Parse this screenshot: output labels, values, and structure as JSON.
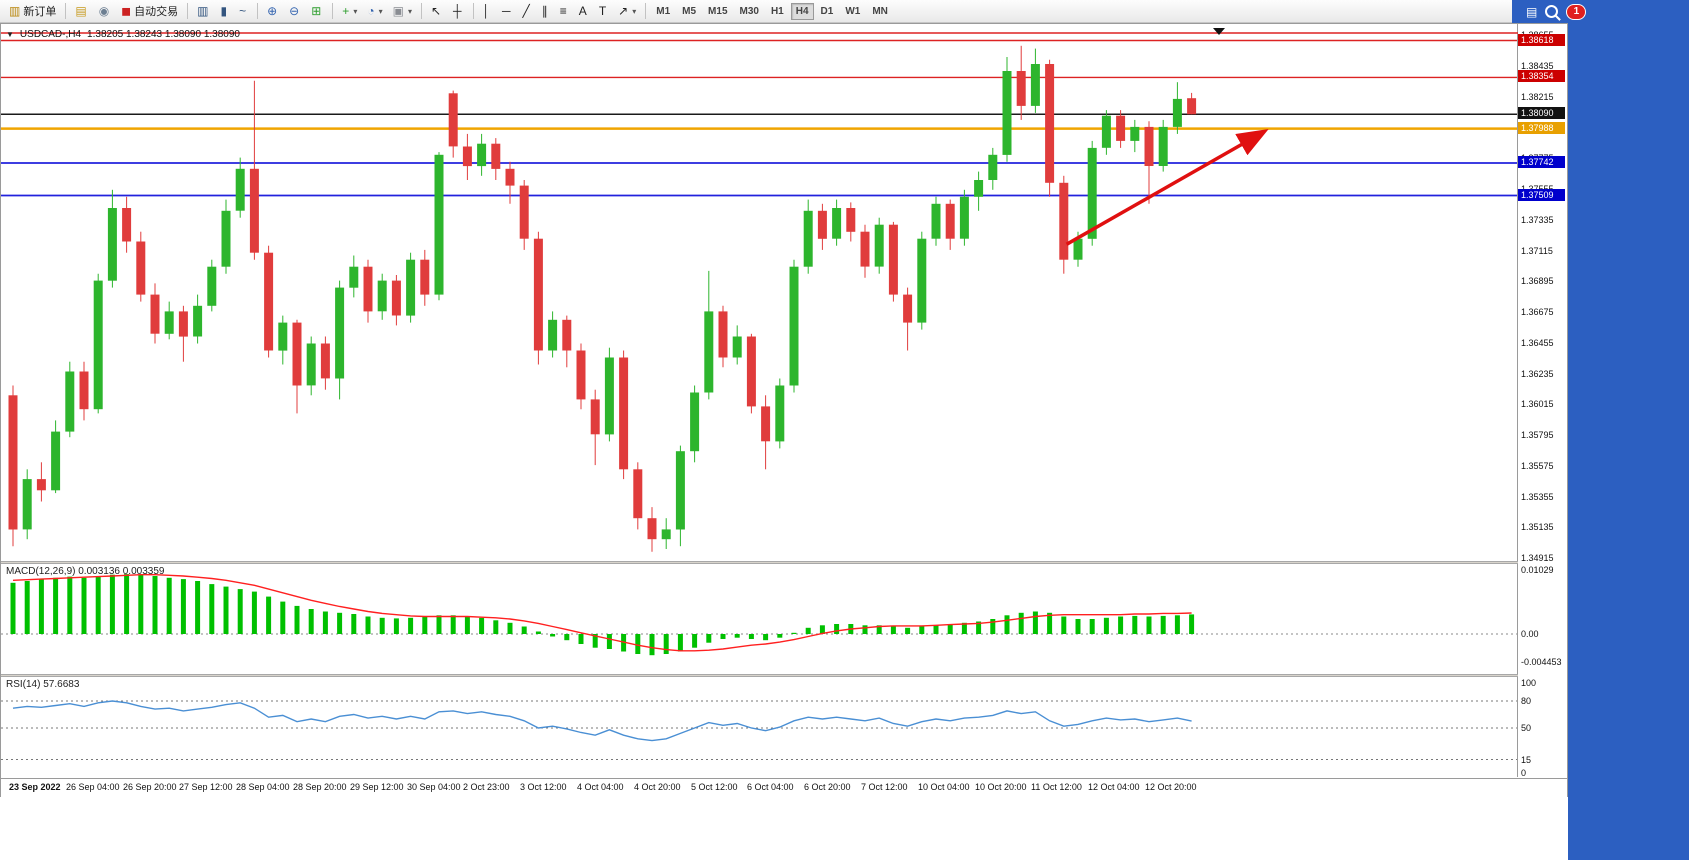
{
  "toolbar": {
    "badge_count": "1",
    "timeframes": [
      "M1",
      "M5",
      "M15",
      "M30",
      "H1",
      "H4",
      "D1",
      "W1",
      "MN"
    ],
    "active_timeframe": "H4",
    "items": [
      {
        "type": "button",
        "name": "new-order-button",
        "icon": "new-order-icon",
        "glyph": "▥",
        "color": "#b8860b",
        "label": "新订单"
      },
      {
        "type": "sep"
      },
      {
        "type": "button",
        "name": "new-chart-button",
        "icon": "new-chart-icon",
        "glyph": "▤",
        "color": "#c79a1e"
      },
      {
        "type": "button",
        "name": "profiles-button",
        "icon": "profiles-icon",
        "glyph": "◉",
        "color": "#6d7f92"
      },
      {
        "type": "button",
        "name": "auto-trading-button",
        "icon": "auto-trading-icon",
        "glyph": "◼",
        "color": "#cc2222",
        "label": "自动交易"
      },
      {
        "type": "sep"
      },
      {
        "type": "button",
        "name": "bar-chart-button",
        "icon": "bar-chart-icon",
        "glyph": "▥",
        "color": "#33557f"
      },
      {
        "type": "button",
        "name": "candlestick-button",
        "icon": "candlestick-icon",
        "glyph": "▮",
        "color": "#33557f"
      },
      {
        "type": "button",
        "name": "line-chart-button",
        "icon": "line-chart-icon",
        "glyph": "~",
        "color": "#33557f"
      },
      {
        "type": "sep"
      },
      {
        "type": "button",
        "name": "zoom-in-button",
        "icon": "zoom-in-icon",
        "glyph": "⊕",
        "color": "#3565b0"
      },
      {
        "type": "button",
        "name": "zoom-out-button",
        "icon": "zoom-out-icon",
        "glyph": "⊖",
        "color": "#3565b0"
      },
      {
        "type": "button",
        "name": "tile-windows-button",
        "icon": "tile-windows-icon",
        "glyph": "⊞",
        "color": "#2e9e2e"
      },
      {
        "type": "sep"
      },
      {
        "type": "button",
        "name": "indicators-button",
        "icon": "indicators-plus-icon",
        "glyph": "+",
        "color": "#2e9e2e",
        "caret": true
      },
      {
        "type": "button",
        "name": "periods-button",
        "icon": "clock-icon",
        "glyph": "◔",
        "color": "#3565b0",
        "caret": true
      },
      {
        "type": "button",
        "name": "templates-button",
        "icon": "template-icon",
        "glyph": "▣",
        "color": "#8a8d93",
        "caret": true
      },
      {
        "type": "sep"
      },
      {
        "type": "button",
        "name": "cursor-button",
        "icon": "cursor-icon",
        "glyph": "↖",
        "color": "#222222"
      },
      {
        "type": "button",
        "name": "crosshair-button",
        "icon": "crosshair-icon",
        "glyph": "┼",
        "color": "#222222"
      },
      {
        "type": "sep"
      },
      {
        "type": "button",
        "name": "vertical-line-button",
        "icon": "vertical-line-icon",
        "glyph": "│",
        "color": "#222222"
      },
      {
        "type": "button",
        "name": "horizontal-line-button",
        "icon": "horizontal-line-icon",
        "glyph": "─",
        "color": "#222222"
      },
      {
        "type": "button",
        "name": "trendline-button",
        "icon": "trendline-icon",
        "glyph": "╱",
        "color": "#222222"
      },
      {
        "type": "button",
        "name": "channel-button",
        "icon": "channel-icon",
        "glyph": "∥",
        "color": "#222222"
      },
      {
        "type": "button",
        "name": "fibonacci-button",
        "icon": "fibonacci-icon",
        "glyph": "≡",
        "color": "#222222"
      },
      {
        "type": "button",
        "name": "text-button",
        "icon": "text-icon",
        "glyph": "A",
        "color": "#222222"
      },
      {
        "type": "button",
        "name": "label-button",
        "icon": "label-icon",
        "glyph": "T",
        "color": "#222222"
      },
      {
        "type": "button",
        "name": "arrows-button",
        "icon": "arrow-icon",
        "glyph": "↗",
        "color": "#222222",
        "caret": true
      },
      {
        "type": "sep"
      }
    ]
  },
  "chart": {
    "title_symbol": "USDCAD-,H4",
    "title_ohlc": "1.38205 1.38243 1.38090 1.38090",
    "macd_label": "MACD(12,26,9) 0.003136 0.003359",
    "rsi_label": "RSI(14) 57.6683",
    "price_axis": [
      "1.38655",
      "1.38435",
      "1.38215",
      "1.37995",
      "1.37775",
      "1.37555",
      "1.37335",
      "1.37115",
      "1.36895",
      "1.36675",
      "1.36455",
      "1.36235",
      "1.36015",
      "1.35795",
      "1.35575",
      "1.35355",
      "1.35135",
      "1.34915"
    ],
    "price_tags": [
      {
        "label": "1.38618",
        "price": 1.38618,
        "bg": "#cc0000"
      },
      {
        "label": "1.38354",
        "price": 1.38354,
        "bg": "#cc0000"
      },
      {
        "label": "1.38090",
        "price": 1.3809,
        "bg": "#111111"
      },
      {
        "label": "1.37988",
        "price": 1.37988,
        "bg": "#e8a000"
      },
      {
        "label": "1.37742",
        "price": 1.37742,
        "bg": "#0000cc"
      },
      {
        "label": "1.37509",
        "price": 1.37509,
        "bg": "#0000cc"
      }
    ],
    "macd_axis": [
      {
        "label": "0.01029",
        "value": 0.01029
      },
      {
        "label": "0.00",
        "value": 0
      },
      {
        "label": "-0.004453",
        "value": -0.004453
      }
    ],
    "rsi_axis": [
      {
        "label": "100",
        "value": 100
      },
      {
        "label": "80",
        "value": 80
      },
      {
        "label": "50",
        "value": 50
      },
      {
        "label": "15",
        "value": 15
      },
      {
        "label": "0",
        "value": 0
      }
    ],
    "time_axis": [
      "23 Sep 2022",
      "26 Sep 04:00",
      "26 Sep 20:00",
      "27 Sep 12:00",
      "28 Sep 04:00",
      "28 Sep 20:00",
      "29 Sep 12:00",
      "30 Sep 04:00",
      "2 Oct 23:00",
      "3 Oct 12:00",
      "4 Oct 04:00",
      "4 Oct 20:00",
      "5 Oct 12:00",
      "6 Oct 04:00",
      "6 Oct 20:00",
      "7 Oct 12:00",
      "10 Oct 04:00",
      "10 Oct 20:00",
      "11 Oct 12:00",
      "12 Oct 04:00",
      "12 Oct 20:00"
    ]
  },
  "chart_data": {
    "type": "candlestick",
    "symbol": "USDCAD",
    "timeframe": "H4",
    "colors": {
      "up": "#2db52d",
      "down": "#e03c3c",
      "macd_hist": "#00c000",
      "macd_signal": "#ff2020",
      "rsi_line": "#4a8fd4"
    },
    "candles": [
      [
        1.3608,
        1.3615,
        1.35,
        1.3512
      ],
      [
        1.3512,
        1.3555,
        1.3505,
        1.3548
      ],
      [
        1.3548,
        1.356,
        1.3532,
        1.354
      ],
      [
        1.354,
        1.359,
        1.3538,
        1.3582
      ],
      [
        1.3582,
        1.3632,
        1.3578,
        1.3625
      ],
      [
        1.3625,
        1.3632,
        1.359,
        1.3598
      ],
      [
        1.3598,
        1.3695,
        1.3595,
        1.369
      ],
      [
        1.369,
        1.3755,
        1.3685,
        1.3742
      ],
      [
        1.3742,
        1.375,
        1.371,
        1.3718
      ],
      [
        1.3718,
        1.3725,
        1.3675,
        1.368
      ],
      [
        1.368,
        1.3688,
        1.3645,
        1.3652
      ],
      [
        1.3652,
        1.3675,
        1.3648,
        1.3668
      ],
      [
        1.3668,
        1.3672,
        1.3632,
        1.365
      ],
      [
        1.365,
        1.368,
        1.3645,
        1.3672
      ],
      [
        1.3672,
        1.3705,
        1.3668,
        1.37
      ],
      [
        1.37,
        1.3748,
        1.3695,
        1.374
      ],
      [
        1.374,
        1.3778,
        1.3735,
        1.377
      ],
      [
        1.377,
        1.3833,
        1.3705,
        1.371
      ],
      [
        1.371,
        1.3715,
        1.3635,
        1.364
      ],
      [
        1.364,
        1.3665,
        1.363,
        1.366
      ],
      [
        1.366,
        1.3662,
        1.3595,
        1.3615
      ],
      [
        1.3615,
        1.365,
        1.3608,
        1.3645
      ],
      [
        1.3645,
        1.365,
        1.3612,
        1.362
      ],
      [
        1.362,
        1.369,
        1.3605,
        1.3685
      ],
      [
        1.3685,
        1.3708,
        1.3678,
        1.37
      ],
      [
        1.37,
        1.3705,
        1.366,
        1.3668
      ],
      [
        1.3668,
        1.3695,
        1.3662,
        1.369
      ],
      [
        1.369,
        1.3694,
        1.3658,
        1.3665
      ],
      [
        1.3665,
        1.371,
        1.366,
        1.3705
      ],
      [
        1.3705,
        1.3712,
        1.3672,
        1.368
      ],
      [
        1.368,
        1.3782,
        1.3676,
        1.378
      ],
      [
        1.3824,
        1.3826,
        1.3778,
        1.3786
      ],
      [
        1.3786,
        1.3795,
        1.3762,
        1.3772
      ],
      [
        1.3772,
        1.3795,
        1.3765,
        1.3788
      ],
      [
        1.3788,
        1.3792,
        1.3762,
        1.377
      ],
      [
        1.377,
        1.3775,
        1.3745,
        1.3758
      ],
      [
        1.3758,
        1.3762,
        1.3712,
        1.372
      ],
      [
        1.372,
        1.3725,
        1.363,
        1.364
      ],
      [
        1.364,
        1.3668,
        1.3635,
        1.3662
      ],
      [
        1.3662,
        1.3665,
        1.3628,
        1.364
      ],
      [
        1.364,
        1.3645,
        1.3598,
        1.3605
      ],
      [
        1.3605,
        1.3612,
        1.3558,
        1.358
      ],
      [
        1.358,
        1.3642,
        1.3575,
        1.3635
      ],
      [
        1.3635,
        1.364,
        1.3548,
        1.3555
      ],
      [
        1.3555,
        1.356,
        1.3512,
        1.352
      ],
      [
        1.352,
        1.3528,
        1.3496,
        1.3505
      ],
      [
        1.3505,
        1.352,
        1.3498,
        1.3512
      ],
      [
        1.3512,
        1.3572,
        1.35,
        1.3568
      ],
      [
        1.3568,
        1.3615,
        1.356,
        1.361
      ],
      [
        1.361,
        1.3697,
        1.3605,
        1.3668
      ],
      [
        1.3668,
        1.3672,
        1.3628,
        1.3635
      ],
      [
        1.3635,
        1.3658,
        1.363,
        1.365
      ],
      [
        1.365,
        1.3652,
        1.3595,
        1.36
      ],
      [
        1.36,
        1.3608,
        1.3555,
        1.3575
      ],
      [
        1.3575,
        1.362,
        1.357,
        1.3615
      ],
      [
        1.3615,
        1.3705,
        1.361,
        1.37
      ],
      [
        1.37,
        1.3748,
        1.3695,
        1.374
      ],
      [
        1.374,
        1.3745,
        1.3712,
        1.372
      ],
      [
        1.372,
        1.3748,
        1.3715,
        1.3742
      ],
      [
        1.3742,
        1.3746,
        1.3718,
        1.3725
      ],
      [
        1.3725,
        1.373,
        1.3692,
        1.37
      ],
      [
        1.37,
        1.3735,
        1.3695,
        1.373
      ],
      [
        1.373,
        1.3732,
        1.3675,
        1.368
      ],
      [
        1.368,
        1.3685,
        1.364,
        1.366
      ],
      [
        1.366,
        1.3725,
        1.3655,
        1.372
      ],
      [
        1.372,
        1.375,
        1.3715,
        1.3745
      ],
      [
        1.3745,
        1.3748,
        1.3712,
        1.372
      ],
      [
        1.372,
        1.3755,
        1.3715,
        1.375
      ],
      [
        1.375,
        1.3768,
        1.374,
        1.3762
      ],
      [
        1.3762,
        1.3785,
        1.3755,
        1.378
      ],
      [
        1.378,
        1.385,
        1.3775,
        1.384
      ],
      [
        1.384,
        1.3858,
        1.3805,
        1.3815
      ],
      [
        1.3815,
        1.3856,
        1.381,
        1.3845
      ],
      [
        1.3845,
        1.3848,
        1.375,
        1.376
      ],
      [
        1.376,
        1.3765,
        1.3695,
        1.3705
      ],
      [
        1.3705,
        1.3725,
        1.37,
        1.372
      ],
      [
        1.372,
        1.379,
        1.3715,
        1.3785
      ],
      [
        1.3785,
        1.3812,
        1.378,
        1.3808
      ],
      [
        1.3808,
        1.3812,
        1.3785,
        1.379
      ],
      [
        1.379,
        1.3805,
        1.3782,
        1.38
      ],
      [
        1.38,
        1.3804,
        1.3745,
        1.3772
      ],
      [
        1.3772,
        1.3805,
        1.3768,
        1.38
      ],
      [
        1.38,
        1.3832,
        1.3795,
        1.382
      ],
      [
        1.38205,
        1.38243,
        1.3809,
        1.3809
      ]
    ],
    "hlines": [
      {
        "price": 1.38672,
        "color": "#dd2222",
        "width": 1.4,
        "full": true
      },
      {
        "price": 1.38618,
        "color": "#dd2222",
        "width": 1.4
      },
      {
        "price": 1.38354,
        "color": "#dd2222",
        "width": 1.4
      },
      {
        "price": 1.3809,
        "color": "#1a1a1a",
        "width": 1.5
      },
      {
        "price": 1.37988,
        "color": "#f0a500",
        "width": 2.5
      },
      {
        "price": 1.37742,
        "color": "#2222dd",
        "width": 1.8
      },
      {
        "price": 1.37509,
        "color": "#2222dd",
        "width": 1.8
      }
    ],
    "macd": {
      "range": [
        -0.004453,
        0.01029
      ],
      "histogram": [
        0.0082,
        0.0085,
        0.0088,
        0.009,
        0.0092,
        0.009,
        0.0092,
        0.0095,
        0.0096,
        0.0095,
        0.0093,
        0.009,
        0.0088,
        0.0085,
        0.008,
        0.0076,
        0.0072,
        0.0068,
        0.006,
        0.0052,
        0.0045,
        0.004,
        0.0036,
        0.0034,
        0.0032,
        0.0028,
        0.0026,
        0.0025,
        0.0026,
        0.0028,
        0.003,
        0.003,
        0.0028,
        0.0026,
        0.0022,
        0.0018,
        0.0012,
        0.0004,
        -0.0004,
        -0.001,
        -0.0016,
        -0.0022,
        -0.0024,
        -0.0028,
        -0.0032,
        -0.0034,
        -0.0032,
        -0.0028,
        -0.0022,
        -0.0014,
        -0.0008,
        -0.0006,
        -0.0008,
        -0.001,
        -0.0006,
        0.0002,
        0.001,
        0.0014,
        0.0016,
        0.0016,
        0.0014,
        0.0014,
        0.0012,
        0.001,
        0.0012,
        0.0014,
        0.0016,
        0.0018,
        0.002,
        0.0024,
        0.003,
        0.0034,
        0.0036,
        0.0034,
        0.0028,
        0.0024,
        0.0024,
        0.0026,
        0.0028,
        0.0029,
        0.0028,
        0.0029,
        0.003,
        0.003136
      ],
      "signal": [
        0.0086,
        0.0087,
        0.0088,
        0.0089,
        0.009,
        0.0091,
        0.0092,
        0.0093,
        0.0094,
        0.0095,
        0.0095,
        0.0094,
        0.0093,
        0.0091,
        0.0089,
        0.0086,
        0.0082,
        0.0078,
        0.0072,
        0.0066,
        0.006,
        0.0054,
        0.0049,
        0.0044,
        0.004,
        0.0036,
        0.0033,
        0.0031,
        0.0029,
        0.0028,
        0.0028,
        0.0028,
        0.0028,
        0.0027,
        0.0026,
        0.0024,
        0.0021,
        0.0017,
        0.0012,
        0.0007,
        0.0002,
        -0.0003,
        -0.0008,
        -0.0013,
        -0.0018,
        -0.0022,
        -0.0025,
        -0.0027,
        -0.0027,
        -0.0026,
        -0.0024,
        -0.0021,
        -0.0018,
        -0.0016,
        -0.0013,
        -0.0009,
        -0.0004,
        0.0001,
        0.0005,
        0.0008,
        0.001,
        0.0012,
        0.0013,
        0.0013,
        0.0013,
        0.0014,
        0.0015,
        0.0016,
        0.0017,
        0.0019,
        0.0022,
        0.0025,
        0.0028,
        0.003,
        0.0031,
        0.0031,
        0.0031,
        0.0031,
        0.0031,
        0.0032,
        0.0032,
        0.0033,
        0.0033,
        0.003359
      ]
    },
    "rsi": {
      "range": [
        0,
        100
      ],
      "levels": [
        80,
        50,
        15
      ],
      "values": [
        72,
        74,
        73,
        75,
        77,
        74,
        78,
        80,
        78,
        74,
        71,
        72,
        69,
        71,
        73,
        76,
        78,
        72,
        62,
        64,
        57,
        60,
        57,
        63,
        65,
        61,
        63,
        60,
        63,
        60,
        68,
        69,
        66,
        68,
        65,
        63,
        58,
        50,
        52,
        49,
        45,
        42,
        48,
        42,
        38,
        36,
        38,
        44,
        50,
        56,
        53,
        55,
        50,
        47,
        51,
        58,
        62,
        60,
        62,
        60,
        58,
        61,
        55,
        52,
        57,
        60,
        58,
        61,
        62,
        64,
        69,
        66,
        68,
        58,
        52,
        54,
        58,
        61,
        59,
        60,
        57,
        59,
        61,
        57.6683
      ]
    },
    "arrow": {
      "from_candle": 74.2,
      "from_price": 1.3716,
      "to_candle": 88.0,
      "to_price": 1.3796,
      "color": "#e01010"
    }
  }
}
